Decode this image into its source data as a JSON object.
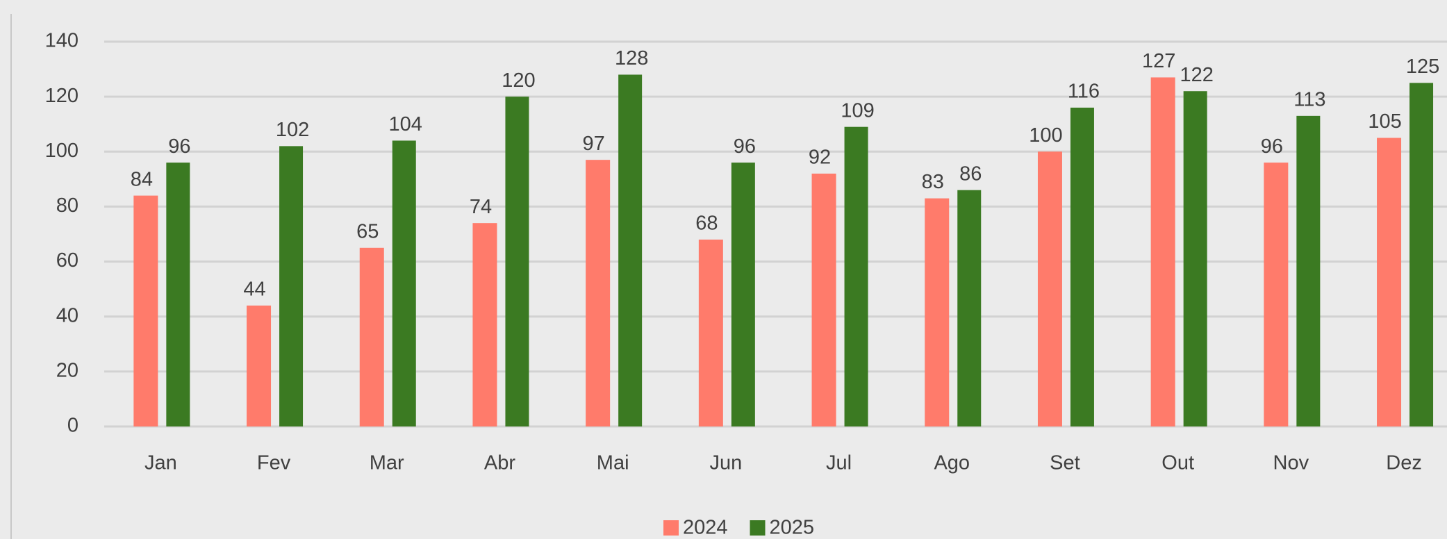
{
  "chart_data": {
    "type": "bar",
    "categories": [
      "Jan",
      "Fev",
      "Mar",
      "Abr",
      "Mai",
      "Jun",
      "Jul",
      "Ago",
      "Set",
      "Out",
      "Nov",
      "Dez"
    ],
    "series": [
      {
        "name": "2024",
        "color": "#ff7b6b",
        "values": [
          84,
          44,
          65,
          74,
          97,
          68,
          92,
          83,
          100,
          127,
          96,
          105
        ]
      },
      {
        "name": "2025",
        "color": "#3b7a22",
        "values": [
          96,
          102,
          104,
          120,
          128,
          96,
          109,
          86,
          116,
          122,
          113,
          125
        ]
      }
    ],
    "ylim": [
      0,
      140
    ],
    "yticks": [
      0,
      20,
      40,
      60,
      80,
      100,
      120,
      140
    ],
    "grid": true,
    "legend": "bottom"
  }
}
